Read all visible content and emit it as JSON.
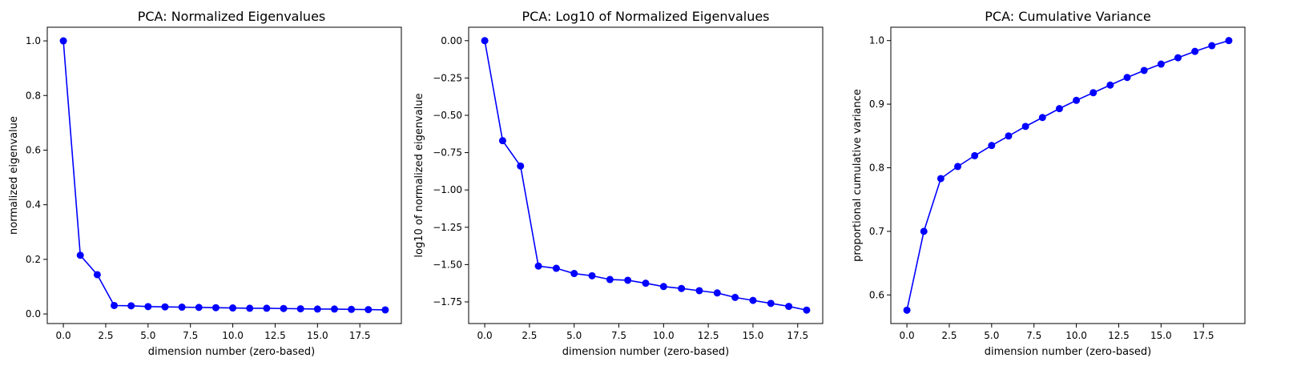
{
  "colors": {
    "line": "#0000ff",
    "marker": "#0000ff",
    "axes": "#000000",
    "background": "#ffffff"
  },
  "chart_data": [
    {
      "type": "line",
      "title": "PCA: Normalized Eigenvalues",
      "xlabel": "dimension number (zero-based)",
      "ylabel": "normalized eigenvalue",
      "x": [
        0,
        1,
        2,
        3,
        4,
        5,
        6,
        7,
        8,
        9,
        10,
        11,
        12,
        13,
        14,
        15,
        16,
        17,
        18,
        19
      ],
      "series": [
        {
          "values": [
            1.0,
            0.215,
            0.144,
            0.031,
            0.03,
            0.027,
            0.026,
            0.025,
            0.024,
            0.023,
            0.022,
            0.021,
            0.021,
            0.02,
            0.019,
            0.018,
            0.018,
            0.017,
            0.016,
            0.015
          ]
        }
      ],
      "xlim": [
        -0.95,
        19.95
      ],
      "ylim": [
        -0.035,
        1.05
      ],
      "xticks": [
        0.0,
        2.5,
        5.0,
        7.5,
        10.0,
        12.5,
        15.0,
        17.5
      ],
      "xtick_labels": [
        "0.0",
        "2.5",
        "5.0",
        "7.5",
        "10.0",
        "12.5",
        "15.0",
        "17.5"
      ],
      "yticks": [
        0.0,
        0.2,
        0.4,
        0.6,
        0.8,
        1.0
      ],
      "ytick_labels": [
        "0.0",
        "0.2",
        "0.4",
        "0.6",
        "0.8",
        "1.0"
      ],
      "grid": false,
      "marker": "circle"
    },
    {
      "type": "line",
      "title": "PCA: Log10 of Normalized Eigenvalues",
      "xlabel": "dimension number (zero-based)",
      "ylabel": "log10 of normalized eigenvalue",
      "x": [
        0,
        1,
        2,
        3,
        4,
        5,
        6,
        7,
        8,
        9,
        10,
        11,
        12,
        13,
        14,
        15,
        16,
        17,
        18
      ],
      "series": [
        {
          "values": [
            0.0,
            -0.67,
            -0.84,
            -1.51,
            -1.525,
            -1.56,
            -1.575,
            -1.6,
            -1.605,
            -1.625,
            -1.647,
            -1.66,
            -1.675,
            -1.69,
            -1.72,
            -1.74,
            -1.76,
            -1.78,
            -1.805
          ]
        }
      ],
      "xlim": [
        -0.9,
        18.9
      ],
      "ylim": [
        -1.895,
        0.09
      ],
      "xticks": [
        0.0,
        2.5,
        5.0,
        7.5,
        10.0,
        12.5,
        15.0,
        17.5
      ],
      "xtick_labels": [
        "0.0",
        "2.5",
        "5.0",
        "7.5",
        "10.0",
        "12.5",
        "15.0",
        "17.5"
      ],
      "yticks": [
        0.0,
        -0.25,
        -0.5,
        -0.75,
        -1.0,
        -1.25,
        -1.5,
        -1.75
      ],
      "ytick_labels": [
        "0.00",
        "−0.25",
        "−0.50",
        "−0.75",
        "−1.00",
        "−1.25",
        "−1.50",
        "−1.75"
      ],
      "grid": false,
      "marker": "circle"
    },
    {
      "type": "line",
      "title": "PCA: Cumulative Variance",
      "xlabel": "dimension number (zero-based)",
      "ylabel": "proportional cumulative variance",
      "x": [
        0,
        1,
        2,
        3,
        4,
        5,
        6,
        7,
        8,
        9,
        10,
        11,
        12,
        13,
        14,
        15,
        16,
        17,
        18,
        19
      ],
      "series": [
        {
          "values": [
            0.576,
            0.7,
            0.783,
            0.802,
            0.819,
            0.835,
            0.85,
            0.865,
            0.879,
            0.893,
            0.906,
            0.918,
            0.93,
            0.942,
            0.953,
            0.963,
            0.973,
            0.983,
            0.992,
            1.0
          ]
        }
      ],
      "xlim": [
        -0.95,
        19.95
      ],
      "ylim": [
        0.555,
        1.021
      ],
      "xticks": [
        0.0,
        2.5,
        5.0,
        7.5,
        10.0,
        12.5,
        15.0,
        17.5
      ],
      "xtick_labels": [
        "0.0",
        "2.5",
        "5.0",
        "7.5",
        "10.0",
        "12.5",
        "15.0",
        "17.5"
      ],
      "yticks": [
        0.6,
        0.7,
        0.8,
        0.9,
        1.0
      ],
      "ytick_labels": [
        "0.6",
        "0.7",
        "0.8",
        "0.9",
        "1.0"
      ],
      "grid": false,
      "marker": "circle"
    }
  ]
}
